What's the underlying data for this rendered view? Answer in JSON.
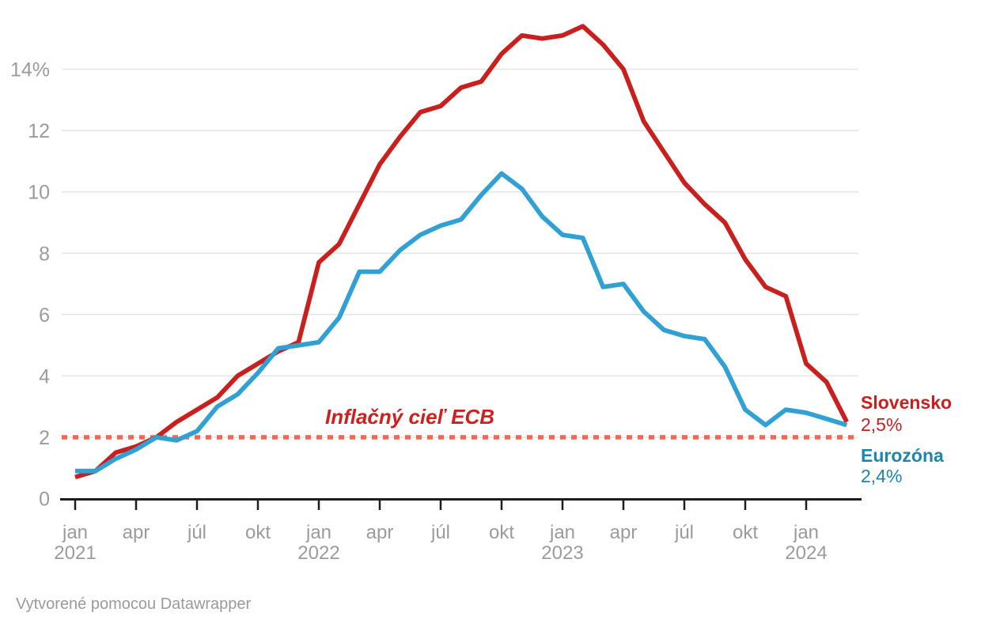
{
  "chart_data": {
    "type": "line",
    "x": [
      "2021-01",
      "2021-02",
      "2021-03",
      "2021-04",
      "2021-05",
      "2021-06",
      "2021-07",
      "2021-08",
      "2021-09",
      "2021-10",
      "2021-11",
      "2021-12",
      "2022-01",
      "2022-02",
      "2022-03",
      "2022-04",
      "2022-05",
      "2022-06",
      "2022-07",
      "2022-08",
      "2022-09",
      "2022-10",
      "2022-11",
      "2022-12",
      "2023-01",
      "2023-02",
      "2023-03",
      "2023-04",
      "2023-05",
      "2023-06",
      "2023-07",
      "2023-08",
      "2023-09",
      "2023-10",
      "2023-11",
      "2023-12",
      "2024-01",
      "2024-02",
      "2024-03"
    ],
    "series": [
      {
        "name": "Slovensko",
        "color": "#c9201e",
        "label_color": "#c9201e",
        "values": [
          0.7,
          0.9,
          1.5,
          1.7,
          2.0,
          2.5,
          2.9,
          3.3,
          4.0,
          4.4,
          4.8,
          5.1,
          7.7,
          8.3,
          9.6,
          10.9,
          11.8,
          12.6,
          12.8,
          13.4,
          13.6,
          14.5,
          15.1,
          15.0,
          15.1,
          15.4,
          14.8,
          14.0,
          12.3,
          11.3,
          10.3,
          9.6,
          9.0,
          7.8,
          6.9,
          6.6,
          4.4,
          3.8,
          2.5
        ],
        "end_label": {
          "title": "Slovensko",
          "value": "2,5%"
        }
      },
      {
        "name": "Eurozóna",
        "color": "#31a1d4",
        "label_color": "#1d86b0",
        "values": [
          0.9,
          0.9,
          1.3,
          1.6,
          2.0,
          1.9,
          2.2,
          3.0,
          3.4,
          4.1,
          4.9,
          5.0,
          5.1,
          5.9,
          7.4,
          7.4,
          8.1,
          8.6,
          8.9,
          9.1,
          9.9,
          10.6,
          10.1,
          9.2,
          8.6,
          8.5,
          6.9,
          7.0,
          6.1,
          5.5,
          5.3,
          5.2,
          4.3,
          2.9,
          2.4,
          2.9,
          2.8,
          2.6,
          2.4
        ],
        "end_label": {
          "title": "Eurozóna",
          "value": "2,4%"
        }
      }
    ],
    "y_axis": {
      "unit": "%",
      "range": [
        0,
        15.5
      ],
      "ticks": [
        {
          "value": 0,
          "label": "0"
        },
        {
          "value": 2,
          "label": "2"
        },
        {
          "value": 4,
          "label": "4"
        },
        {
          "value": 6,
          "label": "6"
        },
        {
          "value": 8,
          "label": "8"
        },
        {
          "value": 10,
          "label": "10"
        },
        {
          "value": 12,
          "label": "12"
        },
        {
          "value": 14,
          "label": "14%"
        }
      ]
    },
    "x_axis": {
      "ticks": [
        {
          "month_index": 0,
          "label": "jan",
          "year": "2021"
        },
        {
          "month_index": 3,
          "label": "apr"
        },
        {
          "month_index": 6,
          "label": "júl"
        },
        {
          "month_index": 9,
          "label": "okt"
        },
        {
          "month_index": 12,
          "label": "jan",
          "year": "2022"
        },
        {
          "month_index": 15,
          "label": "apr"
        },
        {
          "month_index": 18,
          "label": "júl"
        },
        {
          "month_index": 21,
          "label": "okt"
        },
        {
          "month_index": 24,
          "label": "jan",
          "year": "2023"
        },
        {
          "month_index": 27,
          "label": "apr"
        },
        {
          "month_index": 30,
          "label": "júl"
        },
        {
          "month_index": 33,
          "label": "okt"
        },
        {
          "month_index": 36,
          "label": "jan",
          "year": "2024"
        }
      ]
    },
    "reference_line": {
      "value": 2,
      "label": "Inflačný cieľ ECB",
      "line_color": "#f4664f",
      "label_color": "#d0201e"
    },
    "grid": true,
    "legend_position": "end-of-line-labels",
    "axis_text_color": "#9b9b9b",
    "gridline_color": "#e3e3e3",
    "axis_line_color": "#1d1d1d"
  },
  "footer": {
    "attribution": "Vytvorené pomocou Datawrapper"
  }
}
